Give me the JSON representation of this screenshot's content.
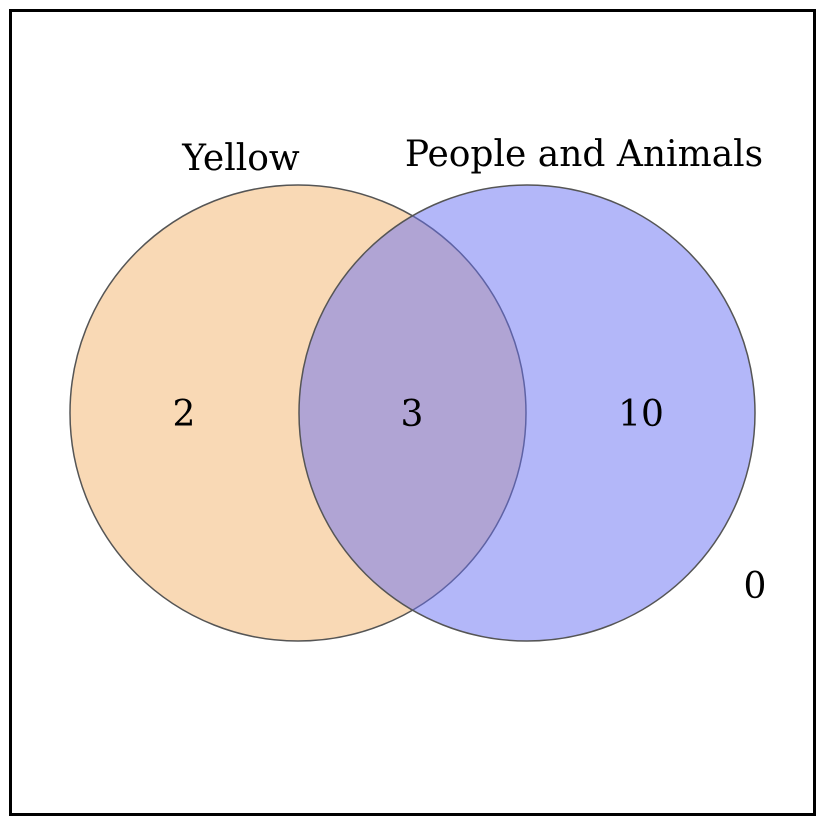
{
  "sets": [
    {
      "label": "Yellow",
      "color": "#f4b36b"
    },
    {
      "label": "People and Animals",
      "color": "#6770f4"
    }
  ],
  "regions": {
    "only_a": "2",
    "both": "3",
    "only_b": "10",
    "outside": "0"
  },
  "colors": {
    "outline": "#555555",
    "frame": "#000000",
    "background": "#ffffff"
  }
}
